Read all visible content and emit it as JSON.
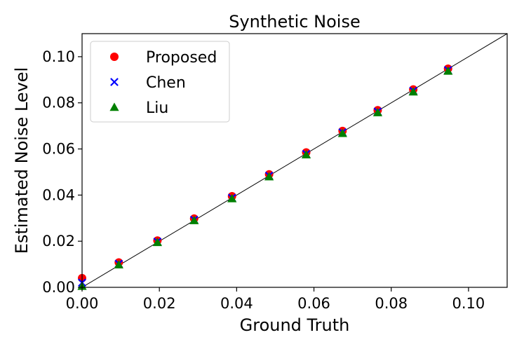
{
  "chart_data": {
    "type": "scatter",
    "title": "Synthetic Noise",
    "xlabel": "Ground Truth",
    "ylabel": "Estimated Noise Level",
    "xlim": [
      0,
      0.11
    ],
    "ylim": [
      0,
      0.11
    ],
    "xticks": [
      "0.00",
      "0.02",
      "0.04",
      "0.06",
      "0.08",
      "0.10"
    ],
    "yticks": [
      "0.00",
      "0.02",
      "0.04",
      "0.06",
      "0.08",
      "0.10"
    ],
    "grid": false,
    "legend_position": "top-left",
    "reference_line": "y = x",
    "series": [
      {
        "name": "Proposed",
        "marker": "circle",
        "color": "#ff0000",
        "x": [
          0.0,
          0.0095,
          0.0195,
          0.029,
          0.0388,
          0.0484,
          0.058,
          0.0674,
          0.0765,
          0.0857,
          0.0947
        ],
        "y": [
          0.004,
          0.0108,
          0.0203,
          0.0298,
          0.0395,
          0.049,
          0.0585,
          0.0678,
          0.0768,
          0.0858,
          0.0948
        ]
      },
      {
        "name": "Chen",
        "marker": "x",
        "color": "#0000ff",
        "x": [
          0.0,
          0.0095,
          0.0195,
          0.029,
          0.0388,
          0.0484,
          0.058,
          0.0674,
          0.0765,
          0.0857,
          0.0947
        ],
        "y": [
          0.002,
          0.0102,
          0.0198,
          0.0293,
          0.0388,
          0.0484,
          0.0578,
          0.0672,
          0.0762,
          0.0852,
          0.0942
        ]
      },
      {
        "name": "Liu",
        "marker": "triangle",
        "color": "#008000",
        "x": [
          0.0,
          0.0095,
          0.0195,
          0.029,
          0.0388,
          0.0484,
          0.058,
          0.0674,
          0.0765,
          0.0857,
          0.0947
        ],
        "y": [
          0.0005,
          0.0098,
          0.0195,
          0.029,
          0.0385,
          0.048,
          0.0575,
          0.0668,
          0.0758,
          0.0848,
          0.0938
        ]
      }
    ]
  }
}
